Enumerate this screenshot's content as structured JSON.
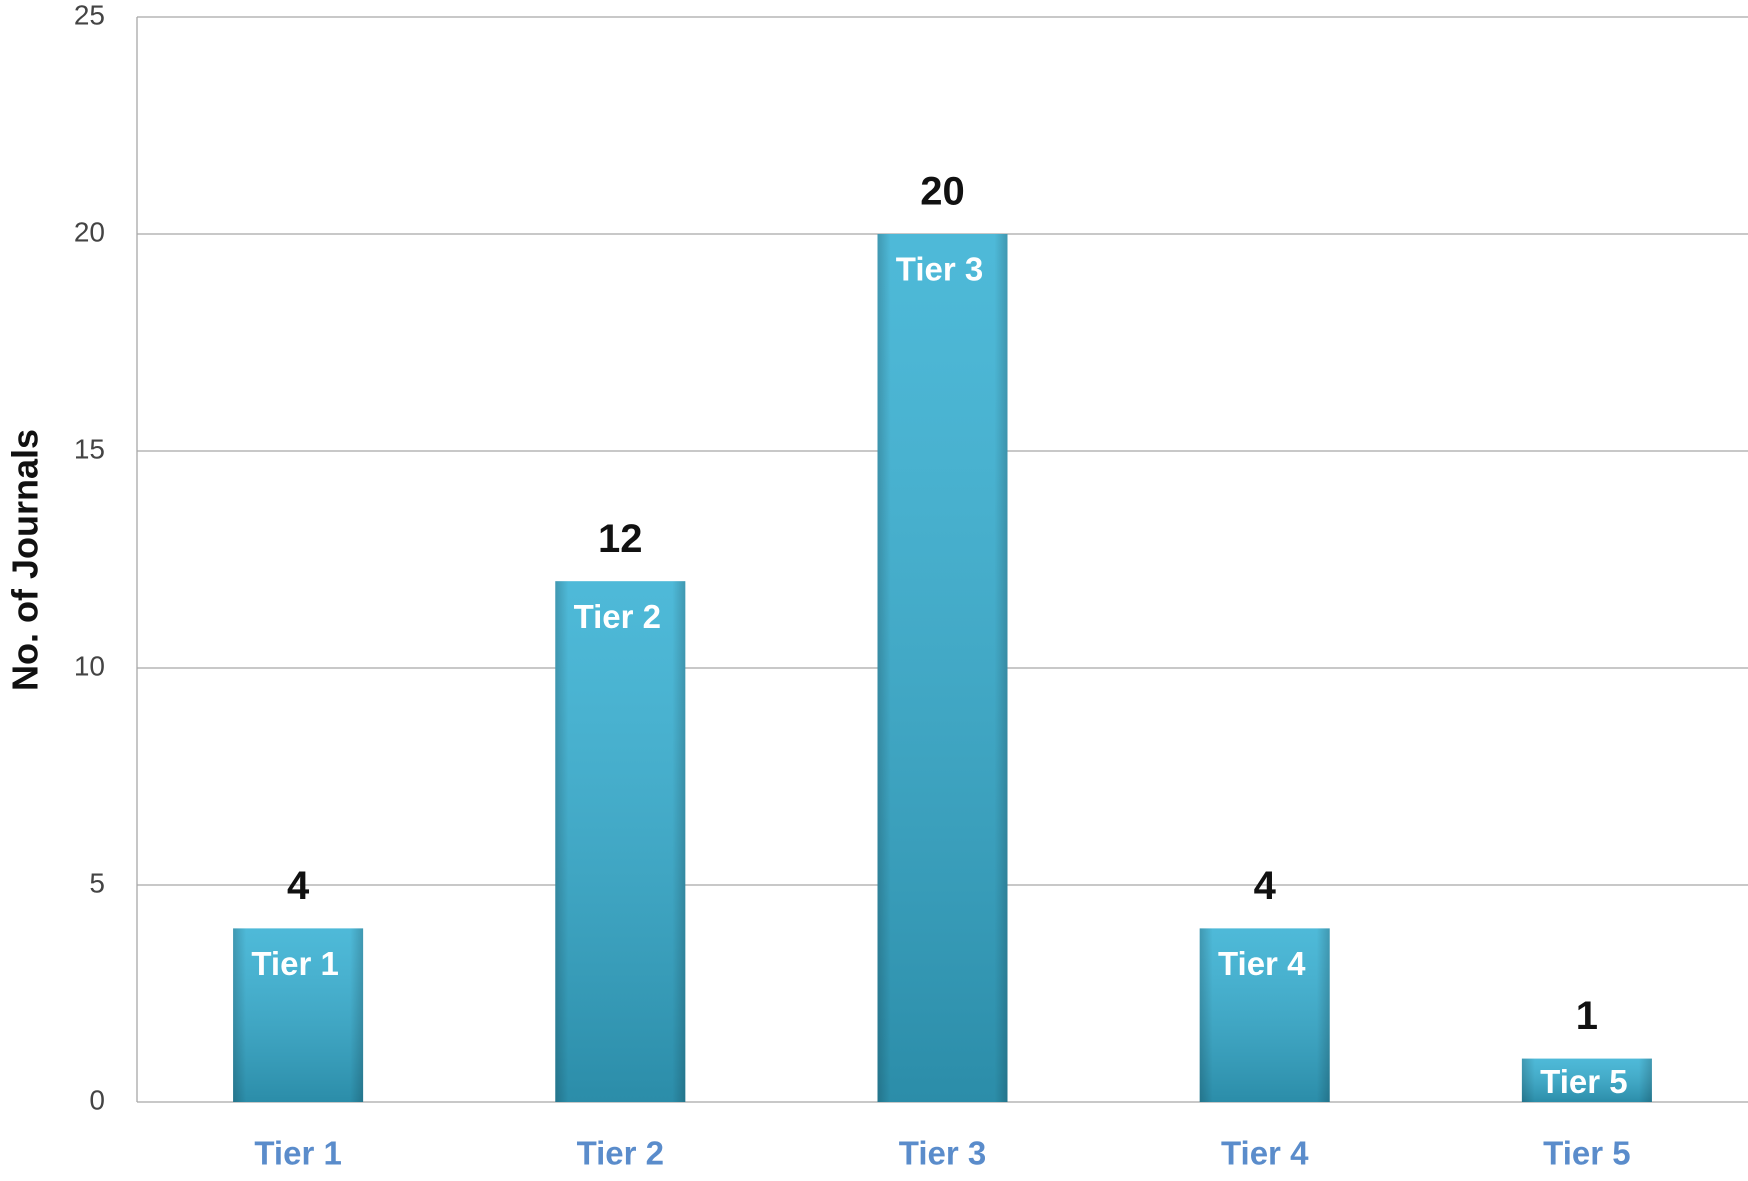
{
  "chart_data": {
    "type": "bar",
    "y_label": "No. of Journals",
    "categories": [
      "Tier 1",
      "Tier 2",
      "Tier 3",
      "Tier 4",
      "Tier 5"
    ],
    "values": [
      4,
      12,
      20,
      4,
      1
    ],
    "color": "#36b0d3",
    "ylim": [
      0,
      25
    ],
    "yticks": [
      0,
      5,
      10,
      15,
      20,
      25
    ],
    "grid": true
  }
}
